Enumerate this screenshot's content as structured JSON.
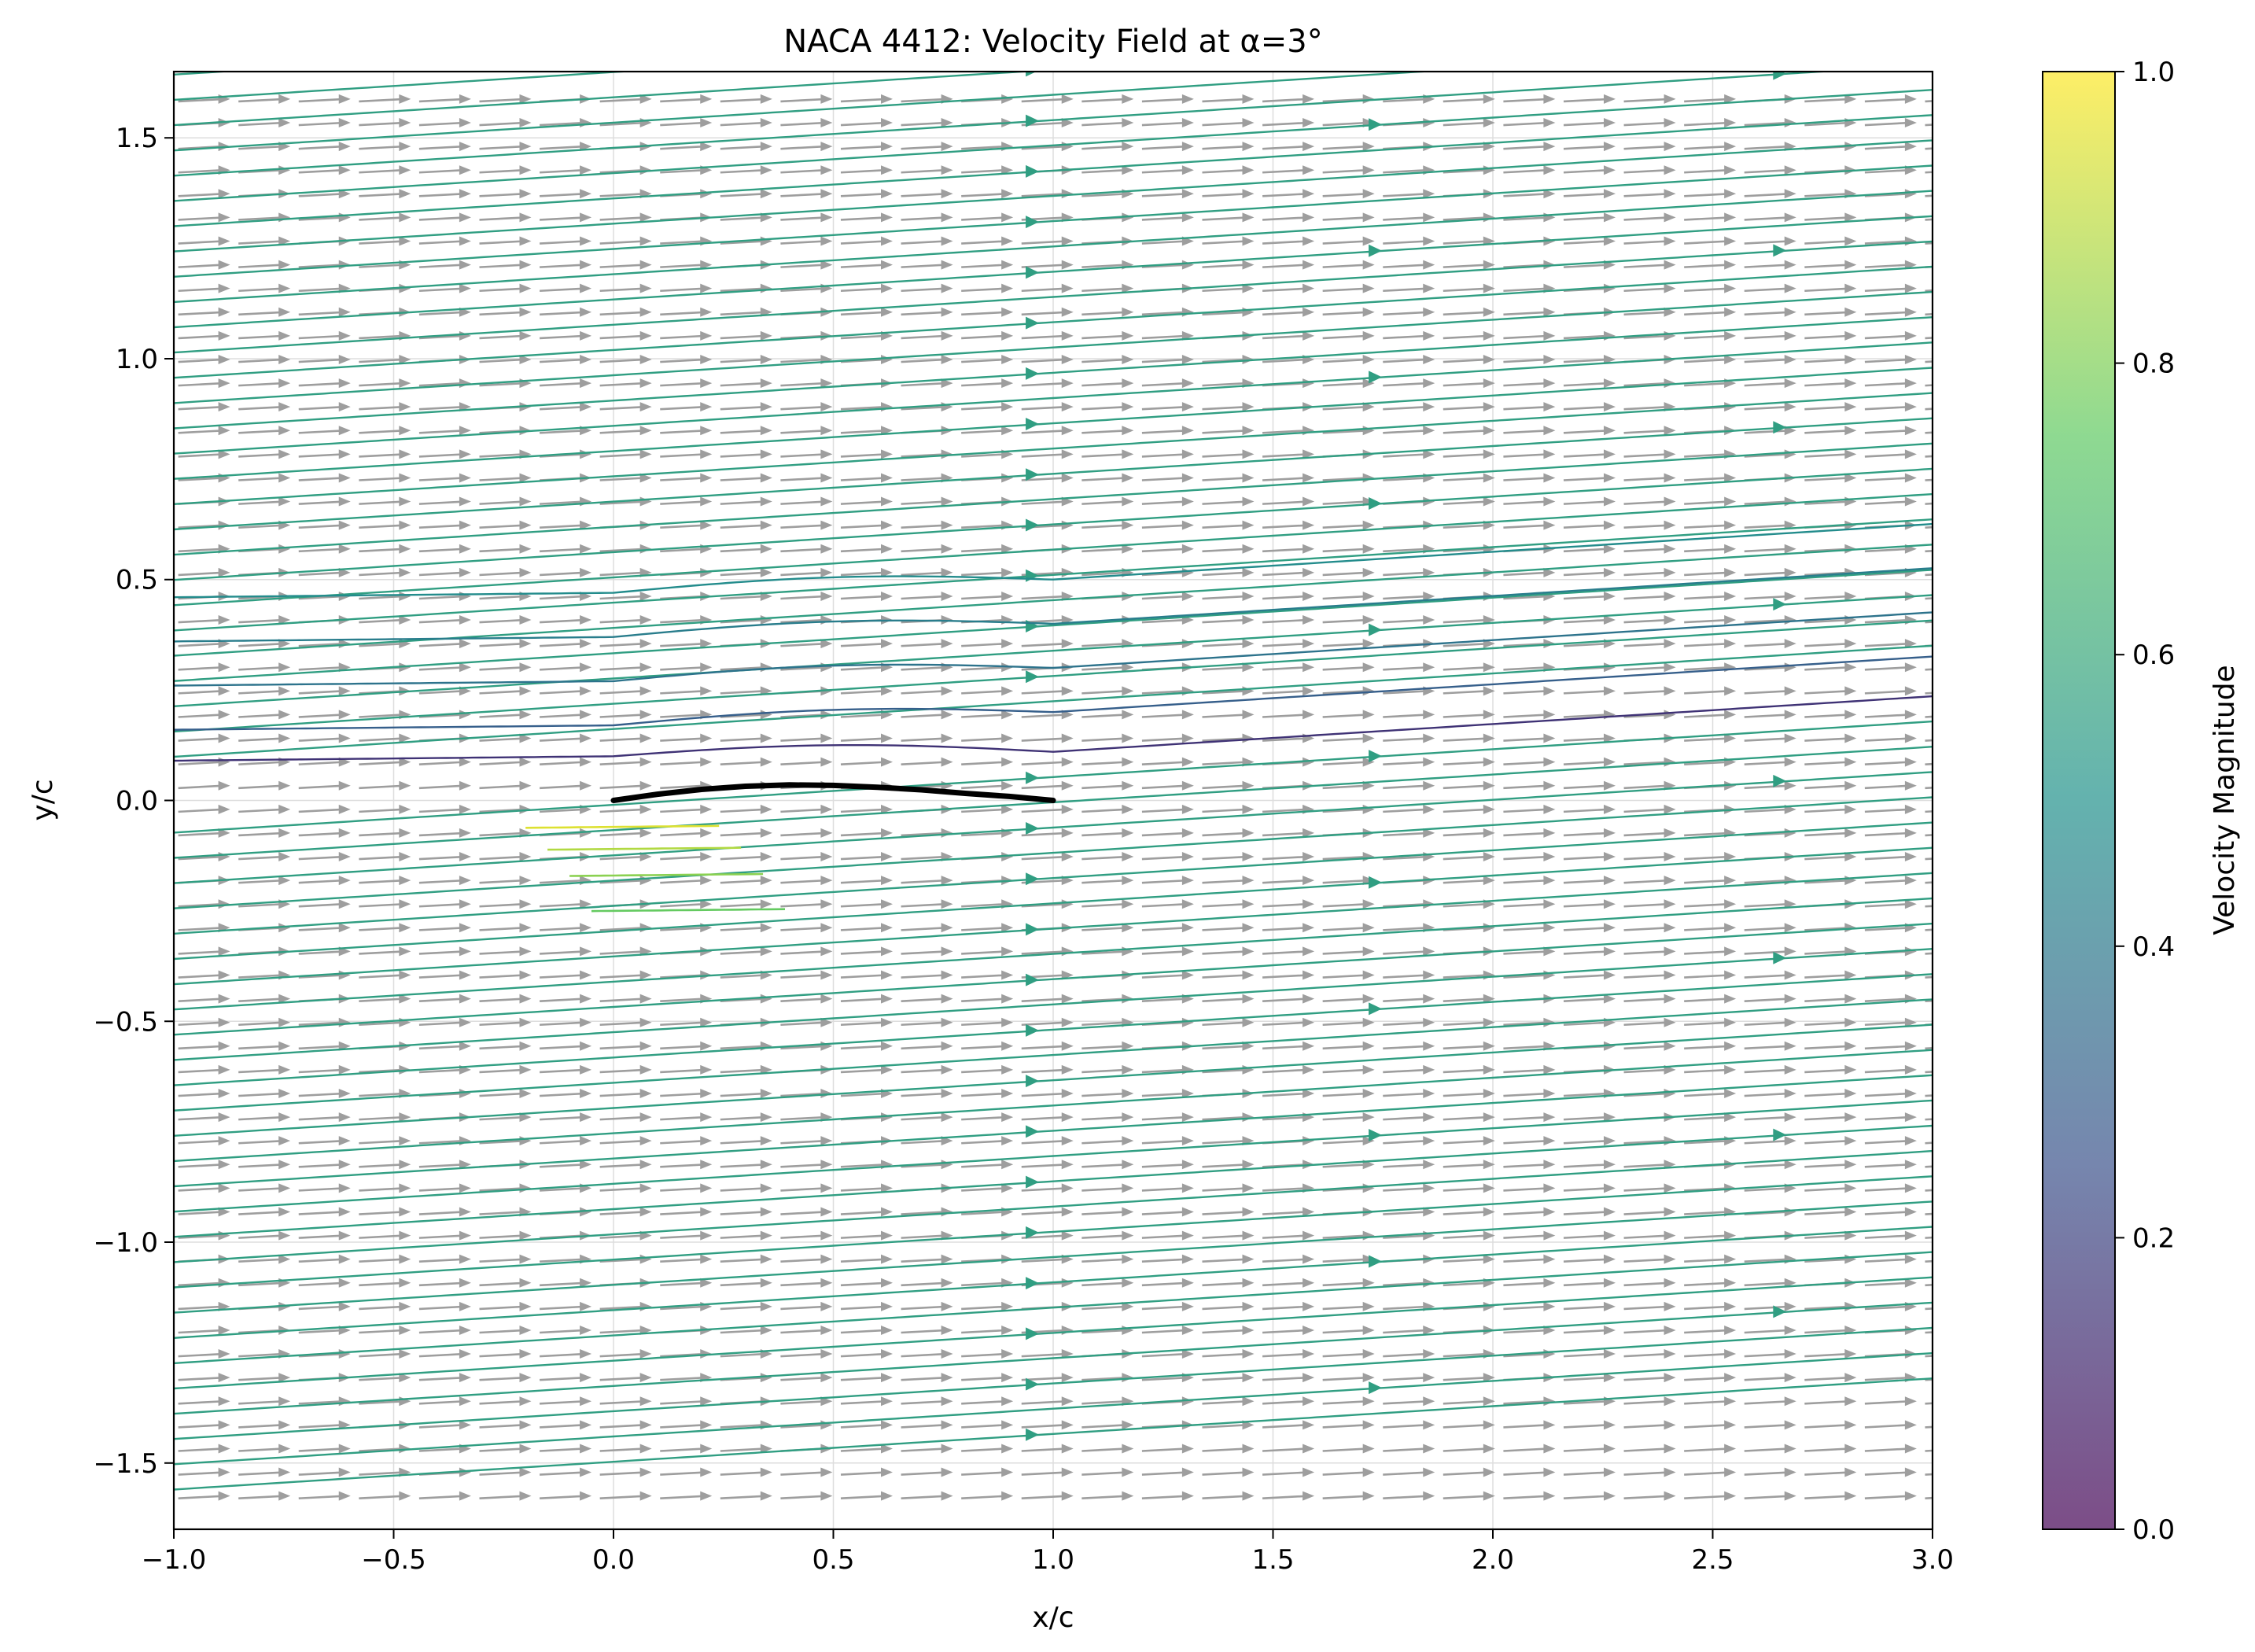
{
  "chart_data": {
    "type": "streamplot",
    "title": "NACA 4412: Velocity Field at α=3°",
    "xlabel": "x/c",
    "ylabel": "y/c",
    "xlim": [
      -1.0,
      3.0
    ],
    "ylim": [
      -1.65,
      1.65
    ],
    "xticks": [
      -1.0,
      -0.5,
      0.0,
      0.5,
      1.0,
      1.5,
      2.0,
      2.5,
      3.0
    ],
    "xtick_labels": [
      "−1.0",
      "−0.5",
      "0.0",
      "0.5",
      "1.0",
      "1.5",
      "2.0",
      "2.5",
      "3.0"
    ],
    "yticks": [
      -1.5,
      -1.0,
      -0.5,
      0.0,
      0.5,
      1.0,
      1.5
    ],
    "ytick_labels": [
      "−1.5",
      "−1.0",
      "−0.5",
      "0.0",
      "0.5",
      "1.0",
      "1.5"
    ],
    "grid": true,
    "free_stream": {
      "angle_of_attack_deg": 3,
      "magnitude": 0.56
    },
    "quiver_color": "#9e9e9e",
    "airfoil": {
      "color": "#000000",
      "camber_line": [
        [
          0.0,
          0.0
        ],
        [
          0.1,
          0.014
        ],
        [
          0.2,
          0.025
        ],
        [
          0.3,
          0.032
        ],
        [
          0.4,
          0.035
        ],
        [
          0.5,
          0.034
        ],
        [
          0.6,
          0.03
        ],
        [
          0.7,
          0.024
        ],
        [
          0.8,
          0.016
        ],
        [
          0.9,
          0.009
        ],
        [
          1.0,
          0.0
        ]
      ]
    },
    "upper_disturbed_streamlines": [
      {
        "y_start": 0.09,
        "y_end": 0.1,
        "speed": 0.15
      },
      {
        "y_start": 0.16,
        "y_end": 0.19,
        "speed": 0.3
      },
      {
        "y_start": 0.26,
        "y_end": 0.29,
        "speed": 0.38
      },
      {
        "y_start": 0.36,
        "y_end": 0.39,
        "speed": 0.42
      },
      {
        "y_start": 0.46,
        "y_end": 0.49,
        "speed": 0.48
      }
    ],
    "lower_accelerated_streamlines": [
      {
        "y": -0.06,
        "speed": 0.95
      },
      {
        "y": -0.11,
        "speed": 0.88
      },
      {
        "y": -0.17,
        "speed": 0.82
      },
      {
        "y": -0.25,
        "speed": 0.76
      }
    ],
    "colorbar": {
      "label": "Velocity Magnitude",
      "range": [
        0.0,
        1.0
      ],
      "ticks": [
        0.0,
        0.2,
        0.4,
        0.6,
        0.8,
        1.0
      ],
      "tick_labels": [
        "0.0",
        "0.2",
        "0.4",
        "0.6",
        "0.8",
        "1.0"
      ],
      "colormap": "viridis",
      "alpha": 0.7
    }
  }
}
